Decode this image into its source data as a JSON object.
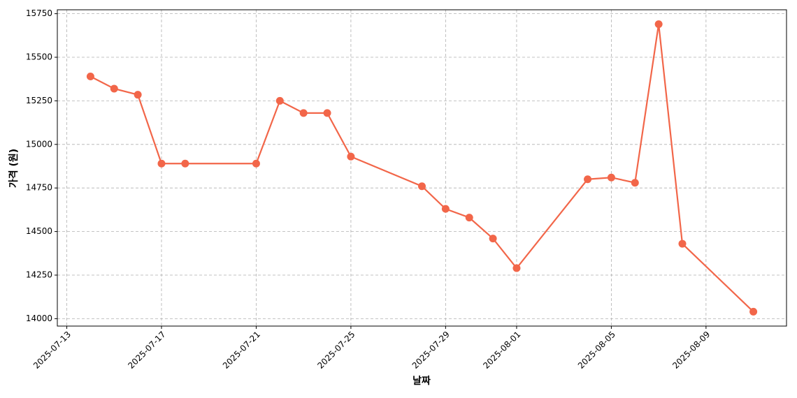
{
  "chart_data": {
    "type": "line",
    "x_label": "날짜",
    "y_label": "가격 (원)",
    "x": [
      "2025-07-14",
      "2025-07-15",
      "2025-07-16",
      "2025-07-17",
      "2025-07-18",
      "2025-07-21",
      "2025-07-22",
      "2025-07-23",
      "2025-07-24",
      "2025-07-25",
      "2025-07-28",
      "2025-07-29",
      "2025-07-30",
      "2025-07-31",
      "2025-08-01",
      "2025-08-04",
      "2025-08-05",
      "2025-08-06",
      "2025-08-07",
      "2025-08-08",
      "2025-08-11"
    ],
    "series": [
      {
        "color": "#f26649",
        "values": [
          15390,
          15320,
          15285,
          14890,
          14890,
          14890,
          15250,
          15180,
          15180,
          14930,
          14760,
          14630,
          14580,
          14460,
          14290,
          14800,
          14810,
          14780,
          15690,
          14430,
          14040
        ]
      }
    ],
    "xlim": [
      "2025-07-12T14:24",
      "2025-08-12T09:36"
    ],
    "xticks": [
      "2025-07-13",
      "2025-07-17",
      "2025-07-21",
      "2025-07-25",
      "2025-07-29",
      "2025-08-01",
      "2025-08-05",
      "2025-08-09"
    ],
    "ylim": [
      13957.5,
      15772.5
    ],
    "yticks": [
      14000,
      14250,
      14500,
      14750,
      15000,
      15250,
      15500,
      15750
    ],
    "grid": true
  }
}
